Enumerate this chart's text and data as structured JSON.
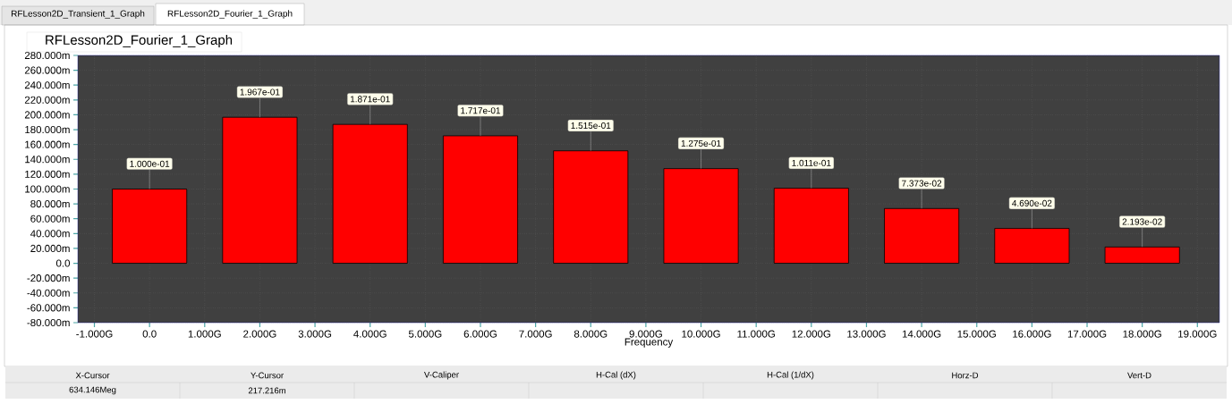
{
  "chart_data": {
    "type": "bar",
    "title": "RFLesson2D_Fourier_1_Graph",
    "xlabel": "Frequency",
    "x": [
      0,
      2,
      4,
      6,
      8,
      10,
      12,
      14,
      16,
      18
    ],
    "values": [
      100,
      196.7,
      187.1,
      171.7,
      151.5,
      127.5,
      101.1,
      73.73,
      46.9,
      21.93
    ],
    "color": "#ff0000",
    "grid": true,
    "xlim": [
      -1.3,
      19.4
    ],
    "xticks": [
      {
        "value": -1,
        "label": "-1.000G"
      },
      {
        "value": 0,
        "label": "0.0"
      },
      {
        "value": 1,
        "label": "1.000G"
      },
      {
        "value": 2,
        "label": "2.000G"
      },
      {
        "value": 3,
        "label": "3.000G"
      },
      {
        "value": 4,
        "label": "4.000G"
      },
      {
        "value": 5,
        "label": "5.000G"
      },
      {
        "value": 6,
        "label": "6.000G"
      },
      {
        "value": 7,
        "label": "7.000G"
      },
      {
        "value": 8,
        "label": "8.000G"
      },
      {
        "value": 9,
        "label": "9.000G"
      },
      {
        "value": 10,
        "label": "10.000G"
      },
      {
        "value": 11,
        "label": "11.000G"
      },
      {
        "value": 12,
        "label": "12.000G"
      },
      {
        "value": 13,
        "label": "13.000G"
      },
      {
        "value": 14,
        "label": "14.000G"
      },
      {
        "value": 15,
        "label": "15.000G"
      },
      {
        "value": 16,
        "label": "16.000G"
      },
      {
        "value": 17,
        "label": "17.000G"
      },
      {
        "value": 18,
        "label": "18.000G"
      },
      {
        "value": 19,
        "label": "19.000G"
      }
    ],
    "ylim": [
      -80,
      280
    ],
    "yticks": [
      {
        "value": -80,
        "label": "-80.000m"
      },
      {
        "value": -60,
        "label": "-60.000m"
      },
      {
        "value": -40,
        "label": "-40.000m"
      },
      {
        "value": -20,
        "label": "-20.000m"
      },
      {
        "value": 0,
        "label": "0.0"
      },
      {
        "value": 20,
        "label": "20.000m"
      },
      {
        "value": 40,
        "label": "40.000m"
      },
      {
        "value": 60,
        "label": "60.000m"
      },
      {
        "value": 80,
        "label": "80.000m"
      },
      {
        "value": 100,
        "label": "100.000m"
      },
      {
        "value": 120,
        "label": "120.000m"
      },
      {
        "value": 140,
        "label": "140.000m"
      },
      {
        "value": 160,
        "label": "160.000m"
      },
      {
        "value": 180,
        "label": "180.000m"
      },
      {
        "value": 200,
        "label": "200.000m"
      },
      {
        "value": 220,
        "label": "220.000m"
      },
      {
        "value": 240,
        "label": "240.000m"
      },
      {
        "value": 260,
        "label": "260.000m"
      },
      {
        "value": 280,
        "label": "280.000m"
      }
    ],
    "annotations": [
      "RFLesson2D_Transient_1_Graph",
      "RFLesson2D_Fourier_1_Graph",
      "X-Cursor",
      "Y-Cursor",
      "V-Caliper",
      "H-Cal (dX)",
      "H-Cal (1/dX)",
      "Horz-D",
      "Vert-D",
      "634.146Meg",
      "217.216m",
      {
        "text": "1.000e-01",
        "x": 0,
        "y": 100
      },
      {
        "text": "1.967e-01",
        "x": 2,
        "y": 196.7
      },
      {
        "text": "1.871e-01",
        "x": 4,
        "y": 187.1
      },
      {
        "text": "1.717e-01",
        "x": 6,
        "y": 171.7
      },
      {
        "text": "1.515e-01",
        "x": 8,
        "y": 151.5
      },
      {
        "text": "1.275e-01",
        "x": 10,
        "y": 127.5
      },
      {
        "text": "1.011e-01",
        "x": 12,
        "y": 101.1
      },
      {
        "text": "7.373e-02",
        "x": 14,
        "y": 73.73
      },
      {
        "text": "4.690e-02",
        "x": 16,
        "y": 46.9
      },
      {
        "text": "2.193e-02",
        "x": 18,
        "y": 21.93
      }
    ]
  }
}
